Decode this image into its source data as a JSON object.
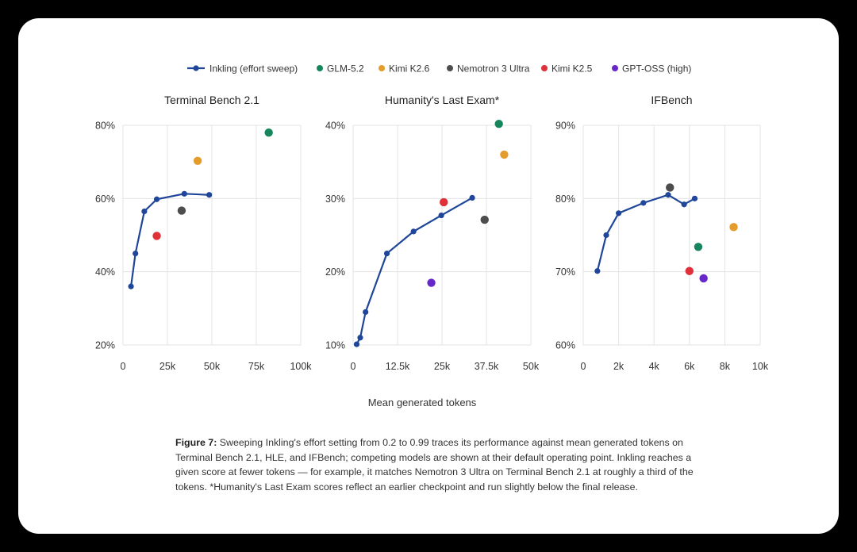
{
  "legend": [
    {
      "name": "Inkling (effort sweep)",
      "color": "#1f4699",
      "kind": "line"
    },
    {
      "name": "GLM-5.2",
      "color": "#16855c",
      "kind": "dot"
    },
    {
      "name": "Kimi K2.6",
      "color": "#e49c2d",
      "kind": "dot"
    },
    {
      "name": "Nemotron 3 Ultra",
      "color": "#4d4d4d",
      "kind": "dot"
    },
    {
      "name": "Kimi K2.5",
      "color": "#e0303a",
      "kind": "dot"
    },
    {
      "name": "GPT-OSS (high)",
      "color": "#6727c9",
      "kind": "dot"
    }
  ],
  "xlabel": "Mean generated tokens",
  "caption": {
    "label": "Figure 7:",
    "text": "Sweeping Inkling's effort setting from 0.2 to 0.99 traces its performance against mean generated tokens on Terminal Bench 2.1, HLE, and IFBench; competing models are shown at their default operating point. Inkling reaches a given score at fewer tokens — for example, it matches Nemotron 3 Ultra on Terminal Bench 2.1 at roughly a third of the tokens. *Humanity's Last Exam scores reflect an earlier checkpoint and run slightly below the final release."
  },
  "chart_data": [
    {
      "type": "scatter",
      "title": "Terminal Bench 2.1",
      "xlim": [
        0,
        100000
      ],
      "ylim": [
        20,
        80
      ],
      "xticks": [
        0,
        25000,
        50000,
        75000,
        100000
      ],
      "xtick_labels": [
        "0",
        "25k",
        "50k",
        "75k",
        "100k"
      ],
      "yticks": [
        20,
        40,
        60,
        80
      ],
      "ytick_labels": [
        "20%",
        "40%",
        "60%",
        "80%"
      ],
      "grid": true,
      "series": [
        {
          "name": "Inkling (effort sweep)",
          "x": [
            4500,
            7000,
            12000,
            19000,
            34500,
            48500
          ],
          "y": [
            36,
            45,
            56.5,
            59.8,
            61.3,
            61
          ]
        },
        {
          "name": "GLM-5.2",
          "x": [
            82000
          ],
          "y": [
            78
          ]
        },
        {
          "name": "Kimi K2.6",
          "x": [
            42000
          ],
          "y": [
            70.3
          ]
        },
        {
          "name": "Nemotron 3 Ultra",
          "x": [
            33000
          ],
          "y": [
            56.7
          ]
        },
        {
          "name": "Kimi K2.5",
          "x": [
            19000
          ],
          "y": [
            49.8
          ]
        }
      ]
    },
    {
      "type": "scatter",
      "title": "Humanity's Last Exam*",
      "xlim": [
        0,
        50000
      ],
      "ylim": [
        10,
        40
      ],
      "xticks": [
        0,
        12500,
        25000,
        37500,
        50000
      ],
      "xtick_labels": [
        "0",
        "12.5k",
        "25k",
        "37.5k",
        "50k"
      ],
      "yticks": [
        10,
        20,
        30,
        40
      ],
      "ytick_labels": [
        "10%",
        "20%",
        "30%",
        "40%"
      ],
      "grid": true,
      "series": [
        {
          "name": "Inkling (effort sweep)",
          "x": [
            1000,
            2000,
            3500,
            9500,
            17000,
            24800,
            33500
          ],
          "y": [
            10.1,
            11,
            14.5,
            22.5,
            25.5,
            27.7,
            30.1
          ]
        },
        {
          "name": "GLM-5.2",
          "x": [
            41000
          ],
          "y": [
            40.2
          ]
        },
        {
          "name": "Kimi K2.6",
          "x": [
            42500
          ],
          "y": [
            36
          ]
        },
        {
          "name": "Nemotron 3 Ultra",
          "x": [
            37000
          ],
          "y": [
            27.1
          ]
        },
        {
          "name": "Kimi K2.5",
          "x": [
            25500
          ],
          "y": [
            29.5
          ]
        },
        {
          "name": "GPT-OSS (high)",
          "x": [
            22000
          ],
          "y": [
            18.5
          ]
        }
      ]
    },
    {
      "type": "scatter",
      "title": "IFBench",
      "xlim": [
        0,
        10000
      ],
      "ylim": [
        60,
        90
      ],
      "xticks": [
        0,
        2000,
        4000,
        6000,
        8000,
        10000
      ],
      "xtick_labels": [
        "0",
        "2k",
        "4k",
        "6k",
        "8k",
        "10k"
      ],
      "yticks": [
        60,
        70,
        80,
        90
      ],
      "ytick_labels": [
        "60%",
        "70%",
        "80%",
        "90%"
      ],
      "grid": true,
      "series": [
        {
          "name": "Inkling (effort sweep)",
          "x": [
            800,
            1300,
            2000,
            3400,
            4800,
            5700,
            6300
          ],
          "y": [
            70.1,
            75,
            78,
            79.4,
            80.5,
            79.2,
            80
          ]
        },
        {
          "name": "GLM-5.2",
          "x": [
            6500
          ],
          "y": [
            73.4
          ]
        },
        {
          "name": "Kimi K2.6",
          "x": [
            8500
          ],
          "y": [
            76.1
          ]
        },
        {
          "name": "Nemotron 3 Ultra",
          "x": [
            4900
          ],
          "y": [
            81.5
          ]
        },
        {
          "name": "Kimi K2.5",
          "x": [
            6000
          ],
          "y": [
            70.1
          ]
        },
        {
          "name": "GPT-OSS (high)",
          "x": [
            6800
          ],
          "y": [
            69.1
          ]
        }
      ]
    }
  ]
}
